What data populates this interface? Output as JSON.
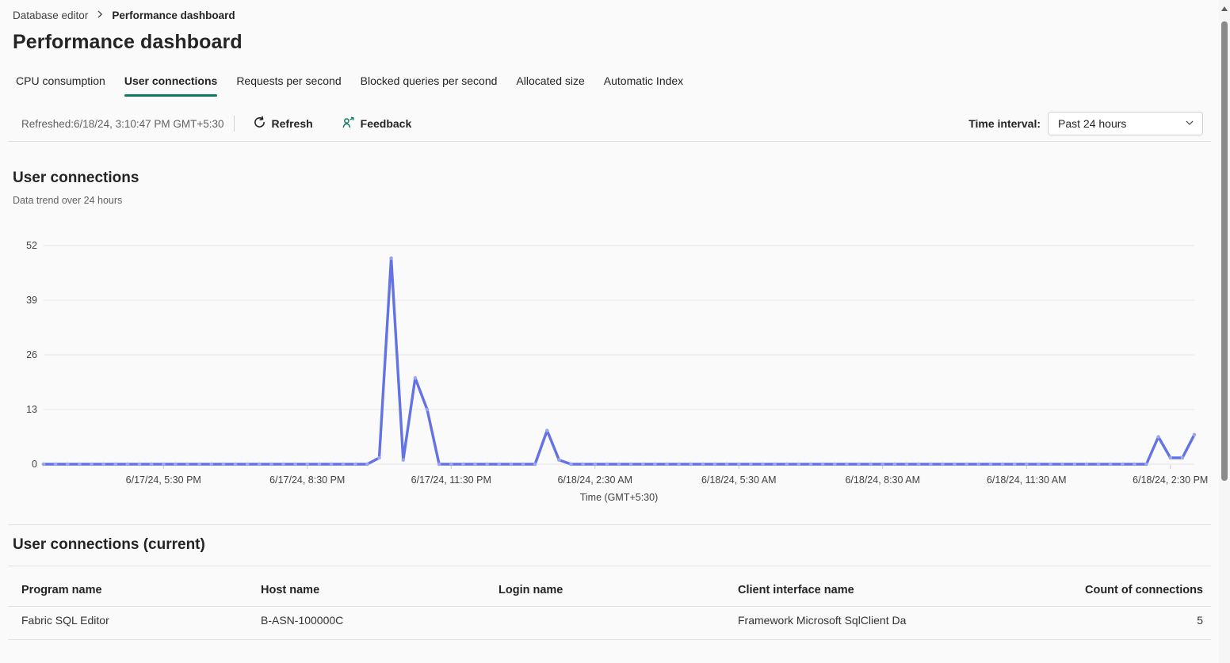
{
  "breadcrumb": {
    "parent": "Database editor",
    "current": "Performance dashboard"
  },
  "page_title": "Performance dashboard",
  "tabs": [
    {
      "label": "CPU consumption",
      "active": false
    },
    {
      "label": "User connections",
      "active": true
    },
    {
      "label": "Requests per second",
      "active": false
    },
    {
      "label": "Blocked queries per second",
      "active": false
    },
    {
      "label": "Allocated size",
      "active": false
    },
    {
      "label": "Automatic Index",
      "active": false
    }
  ],
  "toolbar": {
    "refreshed_text": "Refreshed:6/18/24, 3:10:47 PM GMT+5:30",
    "refresh_label": "Refresh",
    "feedback_label": "Feedback",
    "time_interval_label": "Time interval:",
    "time_interval_value": "Past 24 hours"
  },
  "chart_section": {
    "title": "User connections",
    "subtitle": "Data trend over 24 hours"
  },
  "chart_data": {
    "type": "line",
    "title": "User connections",
    "xlabel": "Time (GMT+5:30)",
    "ylabel": "",
    "ylim": [
      0,
      52
    ],
    "y_ticks": [
      0,
      13,
      26,
      39,
      52
    ],
    "grid": true,
    "legend": "none",
    "x_tick_labels": [
      "6/17/24, 5:30 PM",
      "6/17/24, 8:30 PM",
      "6/17/24, 11:30 PM",
      "6/18/24, 2:30 AM",
      "6/18/24, 5:30 AM",
      "6/18/24, 8:30 AM",
      "6/18/24, 11:30 AM",
      "6/18/24, 2:30 PM"
    ],
    "x_tick_indices": [
      10,
      22,
      34,
      46,
      58,
      70,
      82,
      94
    ],
    "interval_minutes": 15,
    "series": [
      {
        "name": "User connections",
        "values": [
          0,
          0,
          0,
          0,
          0,
          0,
          0,
          0,
          0,
          0,
          0,
          0,
          0,
          0,
          0,
          0,
          0,
          0,
          0,
          0,
          0,
          0,
          0,
          0,
          0,
          0,
          0,
          0,
          1.5,
          49,
          1,
          20.5,
          13,
          0,
          0,
          0,
          0,
          0,
          0,
          0,
          0,
          0,
          8,
          1,
          0,
          0,
          0,
          0,
          0,
          0,
          0,
          0,
          0,
          0,
          0,
          0,
          0,
          0,
          0,
          0,
          0,
          0,
          0,
          0,
          0,
          0,
          0,
          0,
          0,
          0,
          0,
          0,
          0,
          0,
          0,
          0,
          0,
          0,
          0,
          0,
          0,
          0,
          0,
          0,
          0,
          0,
          0,
          0,
          0,
          0,
          0,
          0,
          0,
          6.5,
          1.5,
          1.5,
          7
        ]
      }
    ],
    "line_color": "#6373e3",
    "marker_color": "#9aa7f0"
  },
  "table_section": {
    "title": "User connections (current)",
    "columns": [
      "Program name",
      "Host name",
      "Login name",
      "Client interface name",
      "Count of connections"
    ],
    "rows": [
      [
        "Fabric SQL Editor",
        "B-ASN-100000C",
        "",
        "Framework Microsoft SqlClient Da",
        "5"
      ]
    ]
  },
  "colors": {
    "accent_teal": "#117865",
    "chart_line": "#6373e3",
    "grid_line": "#e6e6e6"
  }
}
